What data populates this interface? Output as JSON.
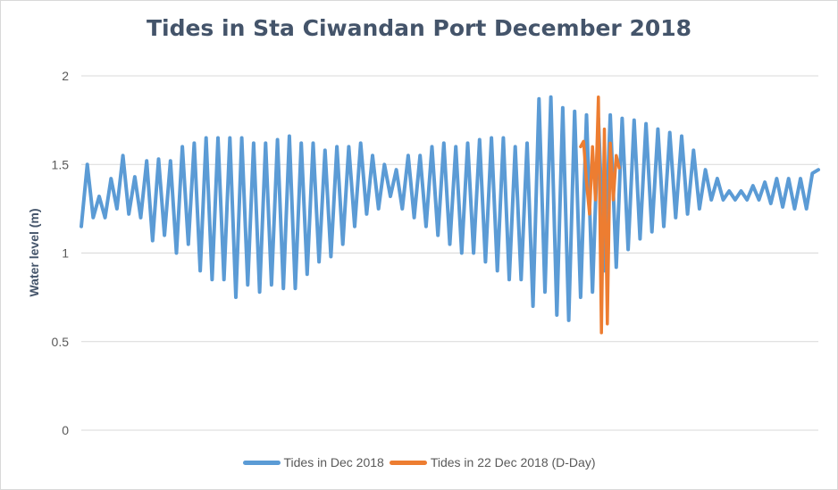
{
  "chart_data": {
    "type": "line",
    "title": "Tides in Sta Ciwandan Port December 2018",
    "xlabel": "",
    "ylabel": "Water level (m)",
    "ylim": [
      0,
      2
    ],
    "yticks": [
      "0",
      "0.5",
      "1",
      "1.5",
      "2"
    ],
    "grid": true,
    "legend_position": "bottom",
    "x_start": 0,
    "x_end": 744,
    "series": [
      {
        "name": "Tides in Dec 2018",
        "color": "#5b9bd5",
        "x": [
          0,
          6,
          12,
          18,
          24,
          30,
          36,
          42,
          48,
          54,
          60,
          66,
          72,
          78,
          84,
          90,
          96,
          102,
          108,
          114,
          120,
          126,
          132,
          138,
          144,
          150,
          156,
          162,
          168,
          174,
          180,
          186,
          192,
          198,
          204,
          210,
          216,
          222,
          228,
          234,
          240,
          246,
          252,
          258,
          264,
          270,
          276,
          282,
          288,
          294,
          300,
          306,
          312,
          318,
          324,
          330,
          336,
          342,
          348,
          354,
          360,
          366,
          372,
          378,
          384,
          390,
          396,
          402,
          408,
          414,
          420,
          426,
          432,
          438,
          444,
          450,
          456,
          462,
          468,
          474,
          480,
          486,
          492,
          498,
          504,
          510,
          516,
          522,
          528,
          534,
          540,
          546,
          552,
          558,
          564,
          570,
          576,
          582,
          588,
          594,
          600,
          606,
          612,
          618,
          624,
          630,
          636,
          642,
          648,
          654,
          660,
          666,
          672,
          678,
          684,
          690,
          696,
          702,
          708,
          714,
          720,
          726,
          732,
          738,
          744
        ],
        "y": [
          1.15,
          1.5,
          1.2,
          1.32,
          1.2,
          1.42,
          1.25,
          1.55,
          1.22,
          1.43,
          1.2,
          1.52,
          1.07,
          1.53,
          1.1,
          1.52,
          1.0,
          1.6,
          1.05,
          1.62,
          0.9,
          1.65,
          0.85,
          1.65,
          0.85,
          1.65,
          0.75,
          1.65,
          0.82,
          1.62,
          0.78,
          1.62,
          0.82,
          1.64,
          0.8,
          1.66,
          0.8,
          1.62,
          0.88,
          1.62,
          0.95,
          1.58,
          0.98,
          1.6,
          1.05,
          1.6,
          1.15,
          1.62,
          1.22,
          1.55,
          1.25,
          1.5,
          1.32,
          1.47,
          1.25,
          1.55,
          1.2,
          1.55,
          1.15,
          1.6,
          1.1,
          1.62,
          1.05,
          1.6,
          1.0,
          1.62,
          1.0,
          1.64,
          0.95,
          1.65,
          0.9,
          1.65,
          0.85,
          1.6,
          0.85,
          1.62,
          0.7,
          1.87,
          0.78,
          1.88,
          0.65,
          1.82,
          0.62,
          1.8,
          0.75,
          1.78,
          0.78,
          1.76,
          0.9,
          1.78,
          0.92,
          1.76,
          1.02,
          1.75,
          1.08,
          1.73,
          1.12,
          1.7,
          1.15,
          1.68,
          1.2,
          1.66,
          1.22,
          1.58,
          1.25,
          1.47,
          1.3,
          1.42,
          1.3,
          1.35,
          1.3,
          1.35,
          1.3,
          1.38,
          1.3,
          1.4,
          1.28,
          1.42,
          1.26,
          1.42,
          1.25,
          1.42,
          1.25,
          1.45,
          1.47
        ]
      },
      {
        "name": "Tides in 22 Dec 2018 (D-Day)",
        "color": "#ed7d31",
        "x": [
          504,
          507,
          510,
          513,
          516,
          519,
          522,
          525,
          528,
          531,
          534,
          537,
          540,
          543
        ],
        "y": [
          1.6,
          1.63,
          1.4,
          1.22,
          1.6,
          1.3,
          1.88,
          0.55,
          1.7,
          0.6,
          1.62,
          1.3,
          1.55,
          1.48
        ]
      }
    ]
  }
}
